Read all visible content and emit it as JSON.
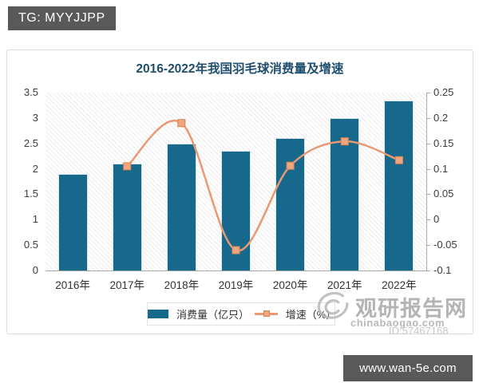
{
  "page": {
    "badge_text": "TG: MYYJJPP",
    "footer_site": "www.wan-5e.com"
  },
  "watermark": {
    "brand": "观研报告网",
    "domain": "chinabaogao.com",
    "id_text": "ID:57467168"
  },
  "theme": {
    "bar_color": "#17698c",
    "line_color": "#e89a74",
    "marker_fill": "#efa67e",
    "marker_edge": "#dd8257",
    "title_color": "#1f4e6e",
    "badge_bg": "#595959",
    "footer_bg": "#595959",
    "watermark_color": "#a8a8a8"
  },
  "chart_data": {
    "type": "bar+line",
    "title": "2016-2022年我国羽毛球消费量及增速",
    "categories": [
      "2016年",
      "2017年",
      "2018年",
      "2019年",
      "2020年",
      "2021年",
      "2022年"
    ],
    "series": [
      {
        "name": "消费量（亿只）",
        "type": "bar",
        "y_axis": "left",
        "values": [
          1.9,
          2.1,
          2.5,
          2.35,
          2.6,
          3.0,
          3.35
        ]
      },
      {
        "name": "增速（%）",
        "type": "line",
        "y_axis": "right",
        "values": [
          null,
          0.105,
          0.19,
          -0.06,
          0.106,
          0.154,
          0.117
        ]
      }
    ],
    "left_axis": {
      "min": 0,
      "max": 3.5,
      "step": 0.5,
      "tick_labels": [
        "3.5",
        "3",
        "2.5",
        "2",
        "1.5",
        "1",
        "0.5",
        "0"
      ]
    },
    "right_axis": {
      "min": -0.1,
      "max": 0.25,
      "step": 0.05,
      "tick_labels": [
        "0.25",
        "0.2",
        "0.15",
        "0.1",
        "0.05",
        "0",
        "-0.05",
        "-0.1"
      ]
    },
    "legend_position": "bottom",
    "grid": false,
    "plot_background": "diagonal-hatch"
  }
}
